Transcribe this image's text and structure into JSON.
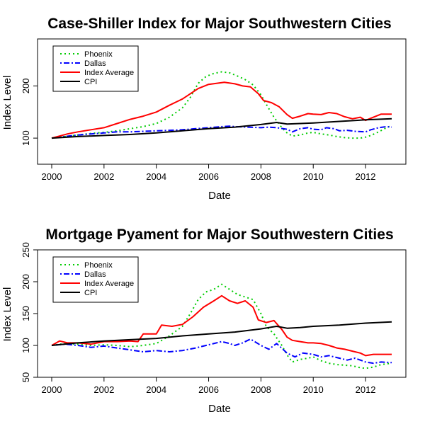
{
  "chart_data": [
    {
      "type": "line",
      "title": "Case-Shiller Index for Major Southwestern Cities",
      "xlabel": "Date",
      "ylabel": "Index Level",
      "xlim": [
        2000,
        2013
      ],
      "ylim": [
        50,
        290
      ],
      "x_ticks": [
        2000,
        2002,
        2004,
        2006,
        2008,
        2010,
        2012
      ],
      "y_ticks": [
        100,
        200
      ],
      "legend_position": "top-left",
      "grid": false,
      "series": [
        {
          "name": "Phoenix",
          "color": "#00cc00",
          "style": "dotted",
          "points": [
            [
              2000,
              100
            ],
            [
              2000.5,
              103
            ],
            [
              2001,
              106
            ],
            [
              2001.5,
              109
            ],
            [
              2002,
              111
            ],
            [
              2002.5,
              114
            ],
            [
              2003,
              118
            ],
            [
              2003.5,
              122
            ],
            [
              2004,
              128
            ],
            [
              2004.5,
              140
            ],
            [
              2005,
              158
            ],
            [
              2005.3,
              178
            ],
            [
              2005.6,
              205
            ],
            [
              2005.9,
              218
            ],
            [
              2006.2,
              224
            ],
            [
              2006.5,
              227
            ],
            [
              2006.8,
              225
            ],
            [
              2007.1,
              219
            ],
            [
              2007.4,
              212
            ],
            [
              2007.7,
              202
            ],
            [
              2008,
              183
            ],
            [
              2008.2,
              165
            ],
            [
              2008.5,
              140
            ],
            [
              2008.8,
              120
            ],
            [
              2009,
              110
            ],
            [
              2009.2,
              104
            ],
            [
              2009.5,
              106
            ],
            [
              2009.8,
              110
            ],
            [
              2010,
              111
            ],
            [
              2010.3,
              108
            ],
            [
              2010.6,
              106
            ],
            [
              2010.9,
              103
            ],
            [
              2011.2,
              101
            ],
            [
              2011.5,
              100
            ],
            [
              2011.8,
              100
            ],
            [
              2012,
              102
            ],
            [
              2012.2,
              105
            ],
            [
              2012.5,
              112
            ],
            [
              2012.8,
              120
            ],
            [
              2013,
              124
            ]
          ]
        },
        {
          "name": "Dallas",
          "color": "#0000ff",
          "style": "dotdash",
          "points": [
            [
              2000,
              100
            ],
            [
              2000.5,
              103
            ],
            [
              2001,
              106
            ],
            [
              2001.5,
              108
            ],
            [
              2002,
              110
            ],
            [
              2002.5,
              112
            ],
            [
              2003,
              112
            ],
            [
              2003.5,
              113
            ],
            [
              2004,
              114
            ],
            [
              2004.5,
              115
            ],
            [
              2005,
              116
            ],
            [
              2005.5,
              118
            ],
            [
              2006,
              120
            ],
            [
              2006.5,
              122
            ],
            [
              2006.8,
              123
            ],
            [
              2007,
              122
            ],
            [
              2007.5,
              121
            ],
            [
              2008,
              120
            ],
            [
              2008.3,
              121
            ],
            [
              2008.6,
              120
            ],
            [
              2009,
              117
            ],
            [
              2009.2,
              112
            ],
            [
              2009.5,
              118
            ],
            [
              2009.8,
              120
            ],
            [
              2010,
              117
            ],
            [
              2010.3,
              116
            ],
            [
              2010.5,
              120
            ],
            [
              2010.8,
              118
            ],
            [
              2011,
              114
            ],
            [
              2011.3,
              115
            ],
            [
              2011.6,
              113
            ],
            [
              2012,
              112
            ],
            [
              2012.2,
              116
            ],
            [
              2012.5,
              120
            ],
            [
              2012.8,
              122
            ],
            [
              2013,
              121
            ]
          ]
        },
        {
          "name": "Index Average",
          "color": "#ff0000",
          "style": "solid",
          "points": [
            [
              2000,
              100
            ],
            [
              2000.3,
              104
            ],
            [
              2000.6,
              108
            ],
            [
              2001,
              112
            ],
            [
              2001.5,
              116
            ],
            [
              2002,
              120
            ],
            [
              2002.5,
              128
            ],
            [
              2003,
              136
            ],
            [
              2003.5,
              142
            ],
            [
              2004,
              150
            ],
            [
              2004.5,
              163
            ],
            [
              2005,
              175
            ],
            [
              2005.3,
              185
            ],
            [
              2005.6,
              195
            ],
            [
              2006,
              203
            ],
            [
              2006.3,
              205
            ],
            [
              2006.6,
              207
            ],
            [
              2007,
              204
            ],
            [
              2007.3,
              200
            ],
            [
              2007.6,
              198
            ],
            [
              2007.9,
              185
            ],
            [
              2008.1,
              172
            ],
            [
              2008.4,
              168
            ],
            [
              2008.7,
              160
            ],
            [
              2009,
              145
            ],
            [
              2009.2,
              138
            ],
            [
              2009.5,
              142
            ],
            [
              2009.8,
              147
            ],
            [
              2010,
              146
            ],
            [
              2010.3,
              145
            ],
            [
              2010.6,
              149
            ],
            [
              2010.9,
              147
            ],
            [
              2011.2,
              141
            ],
            [
              2011.5,
              137
            ],
            [
              2011.8,
              140
            ],
            [
              2012,
              134
            ],
            [
              2012.3,
              140
            ],
            [
              2012.6,
              146
            ],
            [
              2013,
              146
            ]
          ]
        },
        {
          "name": "CPI",
          "color": "#000000",
          "style": "solid",
          "points": [
            [
              2000,
              100
            ],
            [
              2001,
              103
            ],
            [
              2002,
              105
            ],
            [
              2003,
              107
            ],
            [
              2004,
              110
            ],
            [
              2005,
              114
            ],
            [
              2006,
              118
            ],
            [
              2007,
              121
            ],
            [
              2008,
              126
            ],
            [
              2008.6,
              130
            ],
            [
              2009,
              127
            ],
            [
              2009.5,
              128
            ],
            [
              2010,
              129
            ],
            [
              2011,
              132
            ],
            [
              2012,
              135
            ],
            [
              2013,
              137
            ]
          ]
        }
      ]
    },
    {
      "type": "line",
      "title": "Mortgage Pyament for Major Southwestern Cities",
      "xlabel": "Date",
      "ylabel": "Index Level",
      "xlim": [
        2000,
        2013
      ],
      "ylim": [
        50,
        250
      ],
      "x_ticks": [
        2000,
        2002,
        2004,
        2006,
        2008,
        2010,
        2012
      ],
      "y_ticks": [
        50,
        100,
        150,
        200,
        250
      ],
      "legend_position": "top-left",
      "grid": false,
      "series": [
        {
          "name": "Phoenix",
          "color": "#00cc00",
          "style": "dotted",
          "points": [
            [
              2000,
              100
            ],
            [
              2000.5,
              103
            ],
            [
              2001,
              102
            ],
            [
              2001.5,
              100
            ],
            [
              2002,
              101
            ],
            [
              2002.5,
              100
            ],
            [
              2003,
              98
            ],
            [
              2003.5,
              100
            ],
            [
              2004,
              103
            ],
            [
              2004.5,
              115
            ],
            [
              2005,
              130
            ],
            [
              2005.3,
              150
            ],
            [
              2005.6,
              172
            ],
            [
              2005.9,
              184
            ],
            [
              2006.2,
              188
            ],
            [
              2006.5,
              196
            ],
            [
              2006.8,
              188
            ],
            [
              2007.1,
              180
            ],
            [
              2007.4,
              176
            ],
            [
              2007.7,
              172
            ],
            [
              2008,
              150
            ],
            [
              2008.2,
              130
            ],
            [
              2008.5,
              118
            ],
            [
              2008.8,
              100
            ],
            [
              2009,
              85
            ],
            [
              2009.2,
              74
            ],
            [
              2009.5,
              78
            ],
            [
              2009.8,
              80
            ],
            [
              2010,
              82
            ],
            [
              2010.3,
              76
            ],
            [
              2010.6,
              72
            ],
            [
              2010.9,
              70
            ],
            [
              2011.2,
              69
            ],
            [
              2011.5,
              68
            ],
            [
              2011.8,
              65
            ],
            [
              2012,
              64
            ],
            [
              2012.3,
              66
            ],
            [
              2012.6,
              70
            ],
            [
              2013,
              72
            ]
          ]
        },
        {
          "name": "Dallas",
          "color": "#0000ff",
          "style": "dotdash",
          "points": [
            [
              2000,
              100
            ],
            [
              2000.5,
              102
            ],
            [
              2001,
              100
            ],
            [
              2001.5,
              97
            ],
            [
              2002,
              99
            ],
            [
              2002.5,
              96
            ],
            [
              2003,
              93
            ],
            [
              2003.5,
              90
            ],
            [
              2004,
              92
            ],
            [
              2004.5,
              90
            ],
            [
              2005,
              92
            ],
            [
              2005.5,
              96
            ],
            [
              2006,
              101
            ],
            [
              2006.5,
              106
            ],
            [
              2006.8,
              103
            ],
            [
              2007,
              100
            ],
            [
              2007.3,
              104
            ],
            [
              2007.6,
              110
            ],
            [
              2008,
              100
            ],
            [
              2008.3,
              94
            ],
            [
              2008.6,
              103
            ],
            [
              2009,
              88
            ],
            [
              2009.3,
              82
            ],
            [
              2009.6,
              88
            ],
            [
              2010,
              86
            ],
            [
              2010.3,
              82
            ],
            [
              2010.6,
              84
            ],
            [
              2011,
              80
            ],
            [
              2011.3,
              77
            ],
            [
              2011.6,
              80
            ],
            [
              2012,
              74
            ],
            [
              2012.3,
              72
            ],
            [
              2012.6,
              74
            ],
            [
              2013,
              73
            ]
          ]
        },
        {
          "name": "Index Average",
          "color": "#ff0000",
          "style": "solid",
          "points": [
            [
              2000,
              100
            ],
            [
              2000.3,
              107
            ],
            [
              2000.6,
              104
            ],
            [
              2001,
              104
            ],
            [
              2001.5,
              102
            ],
            [
              2002,
              106
            ],
            [
              2002.5,
              106
            ],
            [
              2003,
              107
            ],
            [
              2003.3,
              106
            ],
            [
              2003.5,
              118
            ],
            [
              2004,
              118
            ],
            [
              2004.2,
              132
            ],
            [
              2004.6,
              130
            ],
            [
              2005,
              133
            ],
            [
              2005.4,
              145
            ],
            [
              2005.8,
              160
            ],
            [
              2006.2,
              170
            ],
            [
              2006.5,
              178
            ],
            [
              2006.8,
              170
            ],
            [
              2007.1,
              166
            ],
            [
              2007.4,
              170
            ],
            [
              2007.7,
              160
            ],
            [
              2007.9,
              140
            ],
            [
              2008.2,
              136
            ],
            [
              2008.5,
              139
            ],
            [
              2008.8,
              125
            ],
            [
              2009,
              113
            ],
            [
              2009.2,
              108
            ],
            [
              2009.5,
              106
            ],
            [
              2009.8,
              104
            ],
            [
              2010,
              104
            ],
            [
              2010.3,
              103
            ],
            [
              2010.6,
              100
            ],
            [
              2010.9,
              96
            ],
            [
              2011.2,
              94
            ],
            [
              2011.5,
              91
            ],
            [
              2011.8,
              88
            ],
            [
              2012,
              84
            ],
            [
              2012.3,
              86
            ],
            [
              2012.6,
              86
            ],
            [
              2013,
              86
            ]
          ]
        },
        {
          "name": "CPI",
          "color": "#000000",
          "style": "solid",
          "points": [
            [
              2000,
              100
            ],
            [
              2001,
              104
            ],
            [
              2002,
              107
            ],
            [
              2003,
              109
            ],
            [
              2004,
              111
            ],
            [
              2005,
              115
            ],
            [
              2006,
              118
            ],
            [
              2007,
              121
            ],
            [
              2008,
              126
            ],
            [
              2008.6,
              130
            ],
            [
              2009,
              127
            ],
            [
              2009.5,
              128
            ],
            [
              2010,
              130
            ],
            [
              2011,
              132
            ],
            [
              2012,
              135
            ],
            [
              2013,
              137
            ]
          ]
        }
      ]
    }
  ]
}
